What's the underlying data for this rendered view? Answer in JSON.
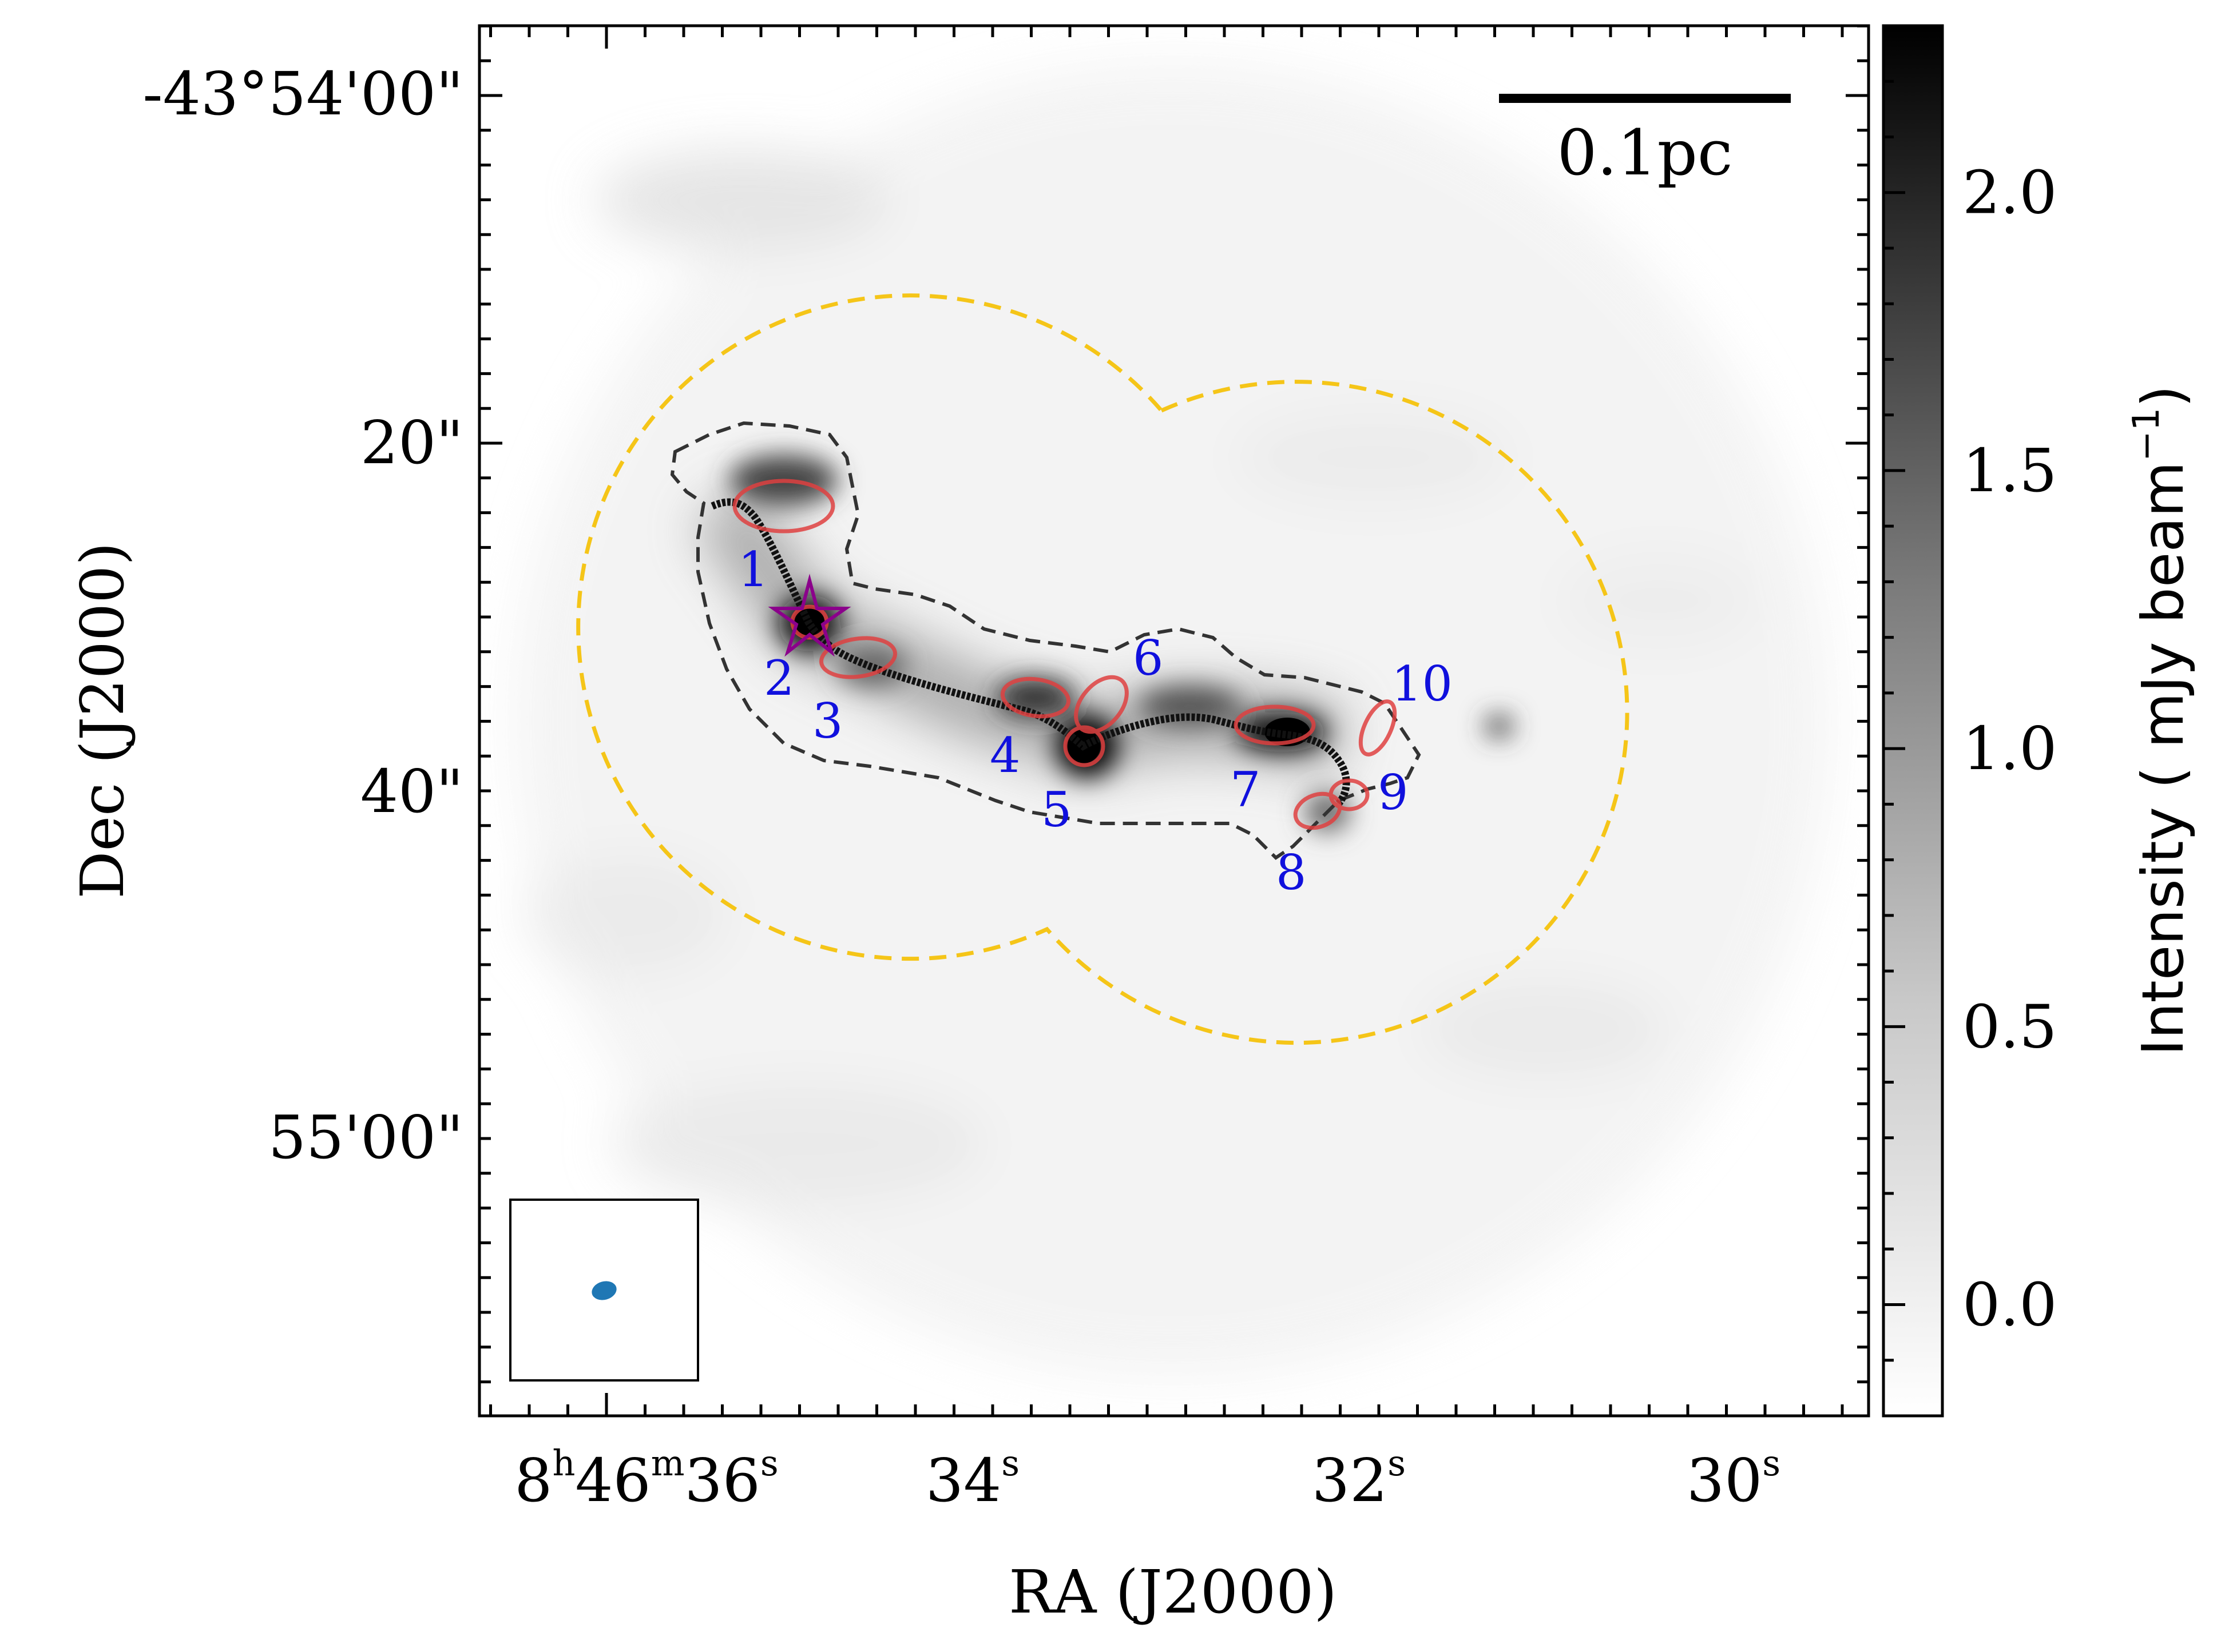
{
  "chart_data": {
    "type": "image",
    "xlabel": "RA (J2000)",
    "ylabel": "Dec (J2000)",
    "x_ticks": [
      {
        "h": "8",
        "m": "46",
        "s": "36"
      },
      {
        "s": "34"
      },
      {
        "s": "32"
      },
      {
        "s": "30"
      }
    ],
    "y_ticks": [
      "-43°54'00\"",
      "20\"",
      "40\"",
      "55'00\""
    ],
    "colorbar": {
      "label": "Intensity ( mJy beam",
      "label_sup": "−1",
      "label_close": ")",
      "colormap": "gray_r",
      "range": [
        -0.2,
        2.3
      ],
      "ticks": [
        "0.0",
        "0.5",
        "1.0",
        "1.5",
        "2.0"
      ]
    },
    "scalebar_label": "0.1pc",
    "cores": [
      {
        "id": "1"
      },
      {
        "id": "2"
      },
      {
        "id": "3"
      },
      {
        "id": "4"
      },
      {
        "id": "5"
      },
      {
        "id": "6"
      },
      {
        "id": "7"
      },
      {
        "id": "8"
      },
      {
        "id": "9"
      },
      {
        "id": "10"
      }
    ],
    "colors": {
      "core_ellipse": "#e04040",
      "core_label": "#1010dd",
      "mosaic_outline": "#f5c518",
      "contour": "#333333",
      "filament": "#111111",
      "star": "#8b008b",
      "beam": "#1f77b4"
    }
  }
}
